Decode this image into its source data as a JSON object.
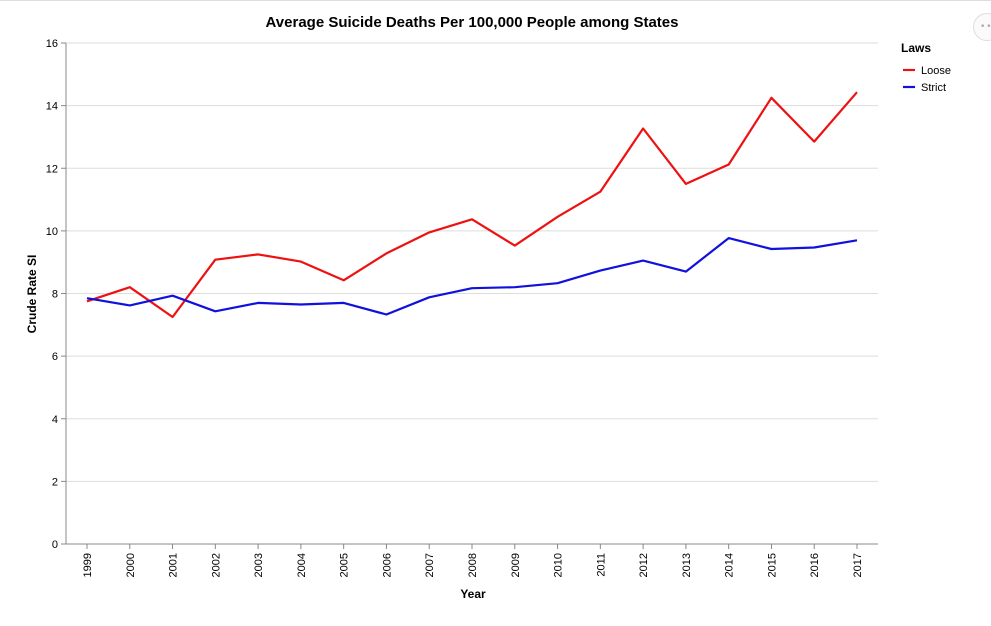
{
  "chart_data": {
    "type": "line",
    "title": "Average Suicide Deaths Per 100,000 People among States",
    "xlabel": "Year",
    "ylabel": "Crude Rate SI",
    "x": [
      "1999",
      "2000",
      "2001",
      "2002",
      "2003",
      "2004",
      "2005",
      "2006",
      "2007",
      "2008",
      "2009",
      "2010",
      "2011",
      "2012",
      "2013",
      "2014",
      "2015",
      "2016",
      "2017"
    ],
    "ylim": [
      0,
      16
    ],
    "yticks": [
      0,
      2,
      4,
      6,
      8,
      10,
      12,
      14,
      16
    ],
    "grid": true,
    "legend": {
      "title": "Laws",
      "placement": "right"
    },
    "series": [
      {
        "name": "Loose",
        "color": "#ee1111",
        "values": [
          7.75,
          8.2,
          7.25,
          9.08,
          9.25,
          9.02,
          8.42,
          9.28,
          9.95,
          10.37,
          9.53,
          10.45,
          11.25,
          13.27,
          11.5,
          12.12,
          14.25,
          12.85,
          14.43
        ]
      },
      {
        "name": "Strict",
        "color": "#1111dd",
        "values": [
          7.85,
          7.62,
          7.93,
          7.43,
          7.7,
          7.65,
          7.7,
          7.33,
          7.88,
          8.17,
          8.2,
          8.33,
          8.73,
          9.05,
          8.7,
          9.77,
          9.42,
          9.47,
          9.7
        ]
      }
    ]
  },
  "ui": {
    "menu_icon": "more-horizontal-icon",
    "menu_glyph": "•••"
  }
}
